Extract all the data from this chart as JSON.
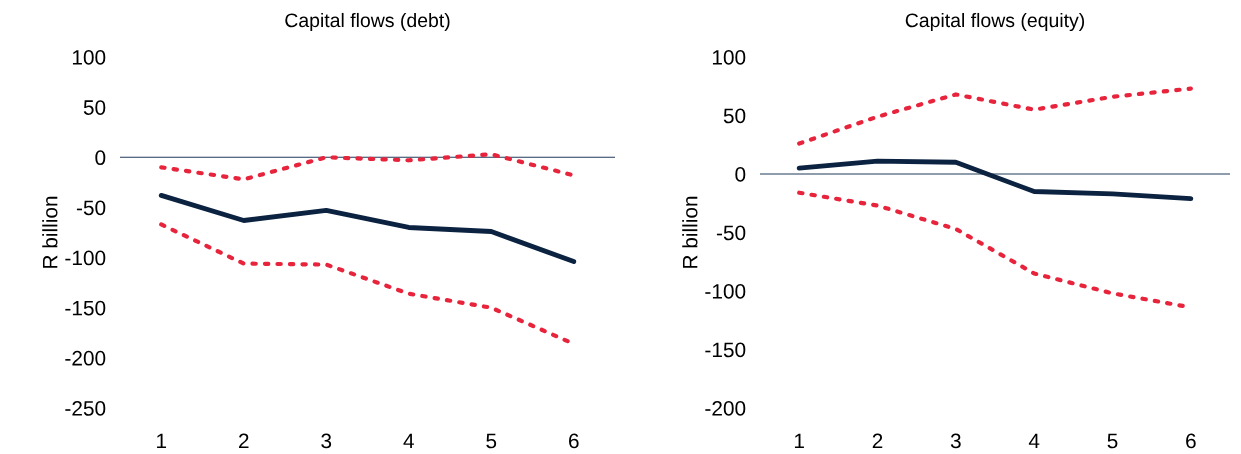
{
  "chart_data": [
    {
      "type": "line",
      "title": "Capital flows (debt)",
      "ylabel": "R billion",
      "categories": [
        "1",
        "2",
        "3",
        "4",
        "5",
        "6"
      ],
      "ylim": [
        -250,
        100
      ],
      "yticks": [
        -250,
        -200,
        -150,
        -100,
        -50,
        0,
        50,
        100
      ],
      "grid": false,
      "legend": false,
      "ref_lines": [
        {
          "axis": "y",
          "value": 0,
          "color": "#1f3a5a"
        }
      ],
      "series": [
        {
          "color": "#e8243c",
          "line_style": "dotted",
          "values": [
            -10,
            -22,
            0,
            -3,
            3,
            -18
          ]
        },
        {
          "color": "#e8243c",
          "line_style": "dotted",
          "values": [
            -67,
            -106,
            -107,
            -136,
            -150,
            -186
          ]
        },
        {
          "color": "#0b2240",
          "line_style": "solid",
          "values": [
            -38,
            -63,
            -53,
            -70,
            -74,
            -104
          ]
        }
      ]
    },
    {
      "type": "line",
      "title": "Capital flows (equity)",
      "ylabel": "R billion",
      "categories": [
        "1",
        "2",
        "3",
        "4",
        "5",
        "6"
      ],
      "ylim": [
        -200,
        100
      ],
      "yticks": [
        -200,
        -150,
        -100,
        -50,
        0,
        50,
        100
      ],
      "grid": false,
      "legend": false,
      "ref_lines": [
        {
          "axis": "y",
          "value": 0,
          "color": "#1f3a5a"
        }
      ],
      "series": [
        {
          "color": "#e8243c",
          "line_style": "dotted",
          "values": [
            26,
            49,
            68,
            55,
            66,
            73
          ]
        },
        {
          "color": "#e8243c",
          "line_style": "dotted",
          "values": [
            -16,
            -27,
            -47,
            -85,
            -102,
            -114
          ]
        },
        {
          "color": "#0b2240",
          "line_style": "solid",
          "values": [
            5,
            11,
            10,
            -15,
            -17,
            -21
          ]
        }
      ]
    }
  ]
}
